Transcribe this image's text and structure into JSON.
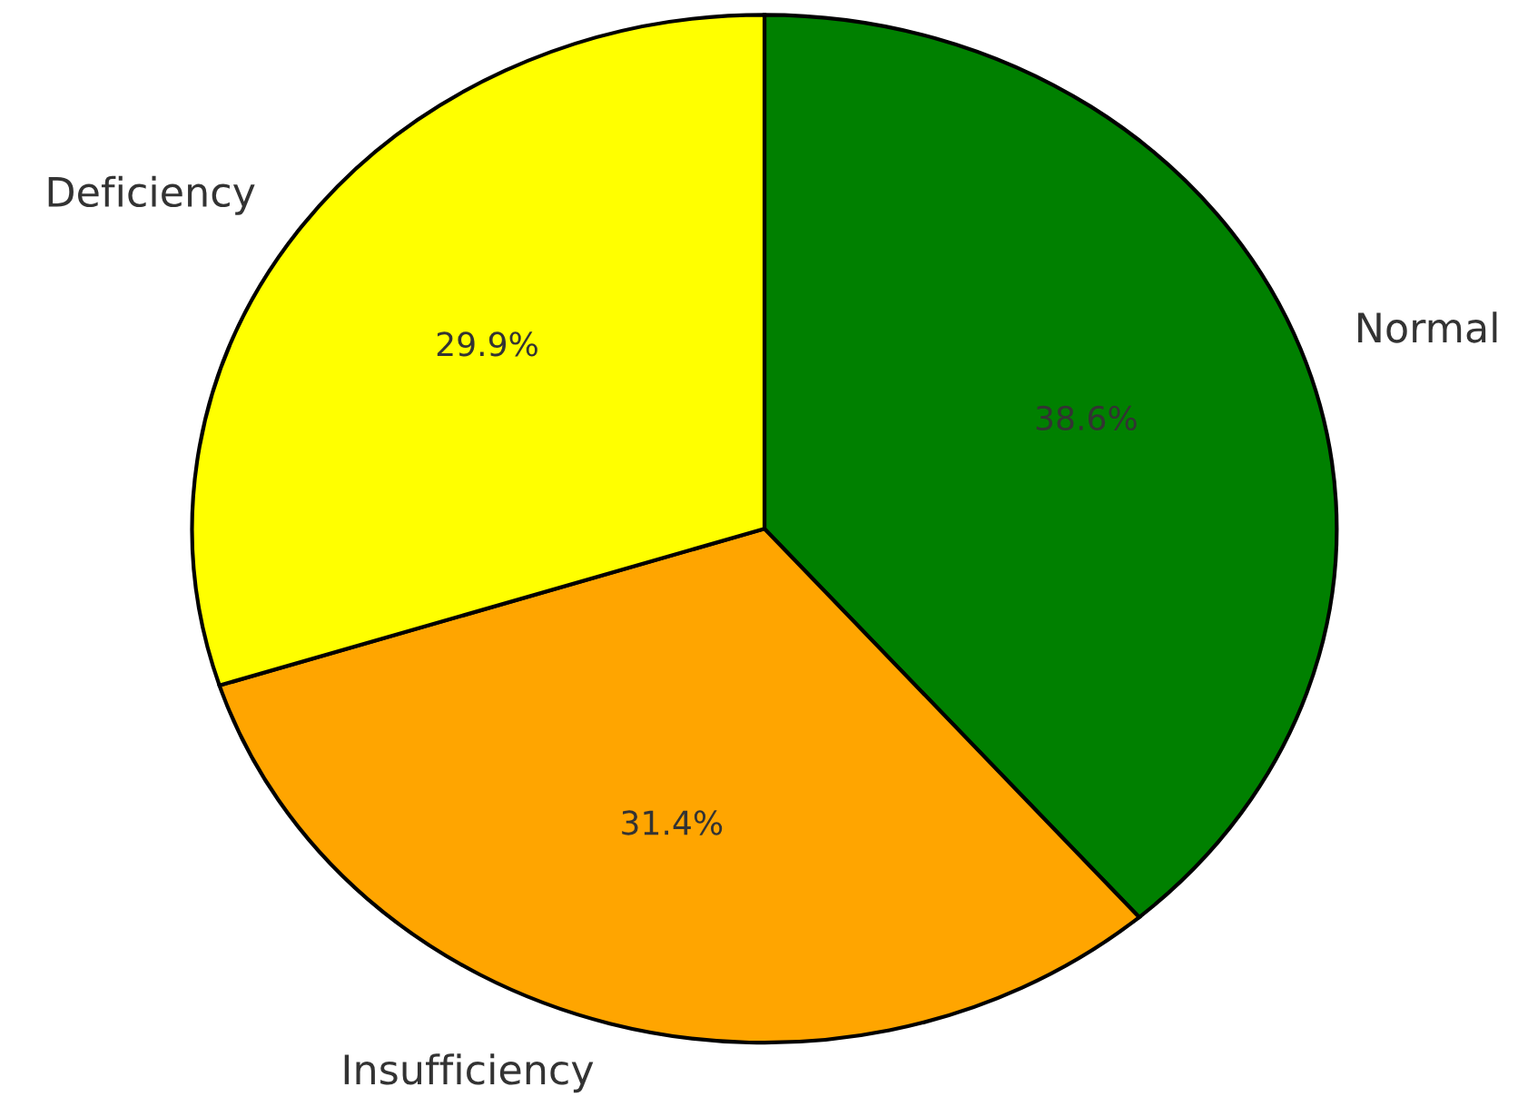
{
  "chart_data": {
    "type": "pie",
    "categories": [
      "Normal",
      "Insufficiency",
      "Deficiency"
    ],
    "values": [
      38.6,
      31.4,
      29.9
    ],
    "colors": [
      "#008000",
      "#ffa500",
      "#ffff00"
    ],
    "value_labels": [
      "38.6%",
      "31.4%",
      "29.9%"
    ]
  }
}
